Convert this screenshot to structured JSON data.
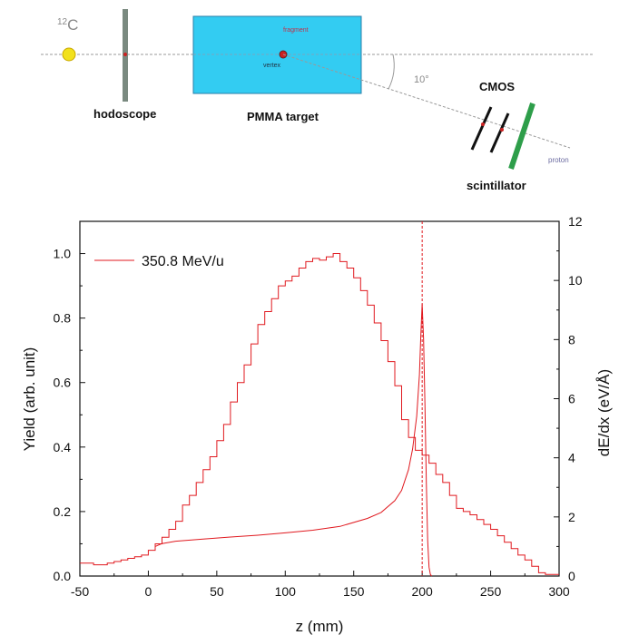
{
  "diagram": {
    "beam_label": "12C",
    "beam_mass": "12",
    "beam_symbol": "C",
    "hodoscope_label": "hodoscope",
    "target_label": "PMMA target",
    "fragment_label": "fragment",
    "vertex_label": "vertex",
    "angle_label": "10°",
    "cmos_label": "CMOS",
    "scintillator_label": "scintillator",
    "proton_label": "proton",
    "colors": {
      "target_fill": "#33ccf2",
      "hodoscope": "#7a8a80",
      "scintillator": "#2e9e4a",
      "beam_source": "#f2e11c",
      "line": "#999999"
    }
  },
  "chart_data": {
    "type": "line",
    "xlabel": "z (mm)",
    "ylabel": "Yield (arb. unit)",
    "y2label": "dE/dx (eV/Å)",
    "xlim": [
      -50,
      300
    ],
    "ylim": [
      0,
      1.1
    ],
    "y2lim": [
      0,
      12
    ],
    "xticks": [
      "-50",
      "0",
      "50",
      "100",
      "150",
      "200",
      "250",
      "300"
    ],
    "yticks": [
      "0.0",
      "0.2",
      "0.4",
      "0.6",
      "0.8",
      "1.0"
    ],
    "y2ticks": [
      "0",
      "2",
      "4",
      "6",
      "8",
      "10",
      "12"
    ],
    "legend": "top-left",
    "marker_line_x": 200,
    "color": "#e0191f",
    "series": [
      {
        "name": "350.8 MeV/u",
        "kind": "yield-histogram",
        "bin_width": 5,
        "x_start": -50,
        "values": [
          0.04,
          0.04,
          0.035,
          0.035,
          0.04,
          0.045,
          0.05,
          0.055,
          0.06,
          0.065,
          0.08,
          0.1,
          0.12,
          0.145,
          0.17,
          0.22,
          0.25,
          0.29,
          0.33,
          0.37,
          0.42,
          0.47,
          0.54,
          0.6,
          0.655,
          0.72,
          0.78,
          0.82,
          0.86,
          0.9,
          0.915,
          0.93,
          0.955,
          0.975,
          0.985,
          0.98,
          0.99,
          1.0,
          0.975,
          0.955,
          0.925,
          0.885,
          0.84,
          0.785,
          0.73,
          0.665,
          0.59,
          0.485,
          0.43,
          0.39,
          0.375,
          0.35,
          0.315,
          0.29,
          0.25,
          0.21,
          0.2,
          0.19,
          0.175,
          0.16,
          0.145,
          0.125,
          0.105,
          0.085,
          0.065,
          0.05,
          0.03,
          0.01,
          0.005,
          0.005
        ]
      },
      {
        "name": "",
        "kind": "dedx-curve",
        "axis": "right",
        "x": [
          5,
          10,
          20,
          40,
          60,
          80,
          100,
          120,
          140,
          160,
          170,
          180,
          185,
          190,
          193,
          196,
          198,
          199,
          200,
          201,
          202,
          203,
          204,
          205,
          206,
          207
        ],
        "y": [
          1.0,
          1.1,
          1.18,
          1.25,
          1.32,
          1.38,
          1.46,
          1.55,
          1.68,
          1.95,
          2.15,
          2.55,
          2.9,
          3.6,
          4.3,
          5.4,
          6.8,
          8.1,
          9.2,
          8.0,
          5.8,
          3.2,
          1.2,
          0.3,
          0.05,
          0.0
        ]
      }
    ]
  }
}
